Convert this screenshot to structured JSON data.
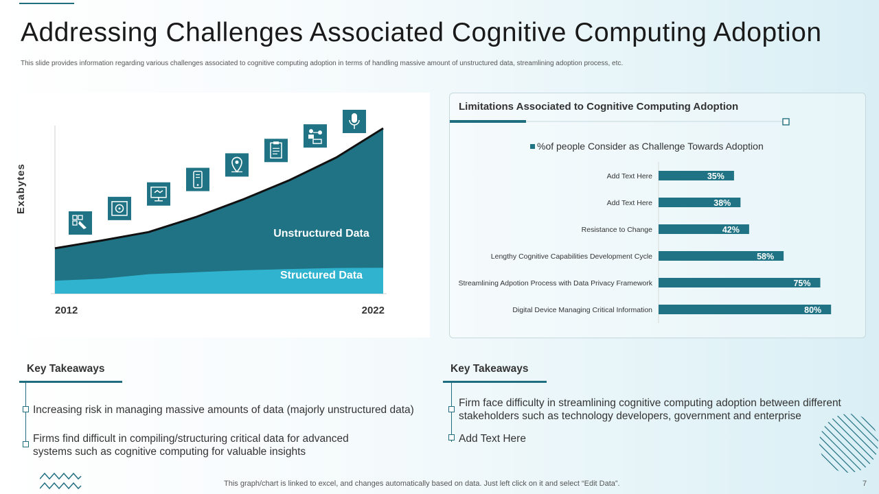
{
  "title": "Addressing Challenges Associated Cognitive Computing Adoption",
  "subtitle": "This slide provides information regarding various challenges associated to cognitive computing adoption in terms of handling massive amount of unstructured data, streamlining adoption process, etc.",
  "footer": "This graph/chart is linked to excel, and changes automatically based on data. Just left click on it and select “Edit Data”.",
  "page_number": "7",
  "colors": {
    "dark_teal": "#1f7384",
    "light_teal": "#30b3cf",
    "accent": "#1f6e80"
  },
  "chart_data": [
    {
      "type": "area",
      "ylabel": "Exabytes",
      "x_labels": [
        "2012",
        "2022"
      ],
      "series": [
        {
          "name": "Structured Data",
          "values": [
            20,
            23,
            30,
            33,
            36,
            38,
            39.5,
            40
          ]
        },
        {
          "name": "Unstructured Data",
          "values": [
            70,
            82,
            95,
            118,
            145,
            175,
            210,
            255
          ]
        }
      ],
      "ylim": [
        0,
        255
      ],
      "icons": [
        "puzzle-icon",
        "film-reel-icon",
        "monitor-handshake-icon",
        "mobile-phone-icon",
        "location-pin-icon",
        "clipboard-icon",
        "network-users-icon",
        "microphone-icon"
      ]
    },
    {
      "type": "bar",
      "orientation": "horizontal",
      "title": "Limitations Associated to Cognitive Computing Adoption",
      "legend": "%of people Consider as Challenge Towards Adoption",
      "categories": [
        "Add Text Here",
        "Add Text Here",
        "Resistance to Change",
        "Lengthy Cognitive Capabilities Development Cycle",
        "Streamlining Adpotion Process with Data Privacy Framework",
        "Digital Device Managing Critical Information"
      ],
      "values": [
        35,
        38,
        42,
        58,
        75,
        80
      ],
      "value_labels": [
        "35%",
        "38%",
        "42%",
        "58%",
        "75%",
        "80%"
      ]
    }
  ],
  "takeaways_left": {
    "heading": "Key Takeaways",
    "items": [
      "Increasing risk in managing massive amounts of data (majorly unstructured data)",
      "Firms find difficult in compiling/structuring critical data for advanced systems such as cognitive computing for valuable insights"
    ]
  },
  "takeaways_right": {
    "heading": "Key Takeaways",
    "items": [
      "Firm face difficulty in streamlining cognitive computing adoption between different stakeholders such as technology developers, government and enterprise",
      "Add Text Here"
    ]
  }
}
